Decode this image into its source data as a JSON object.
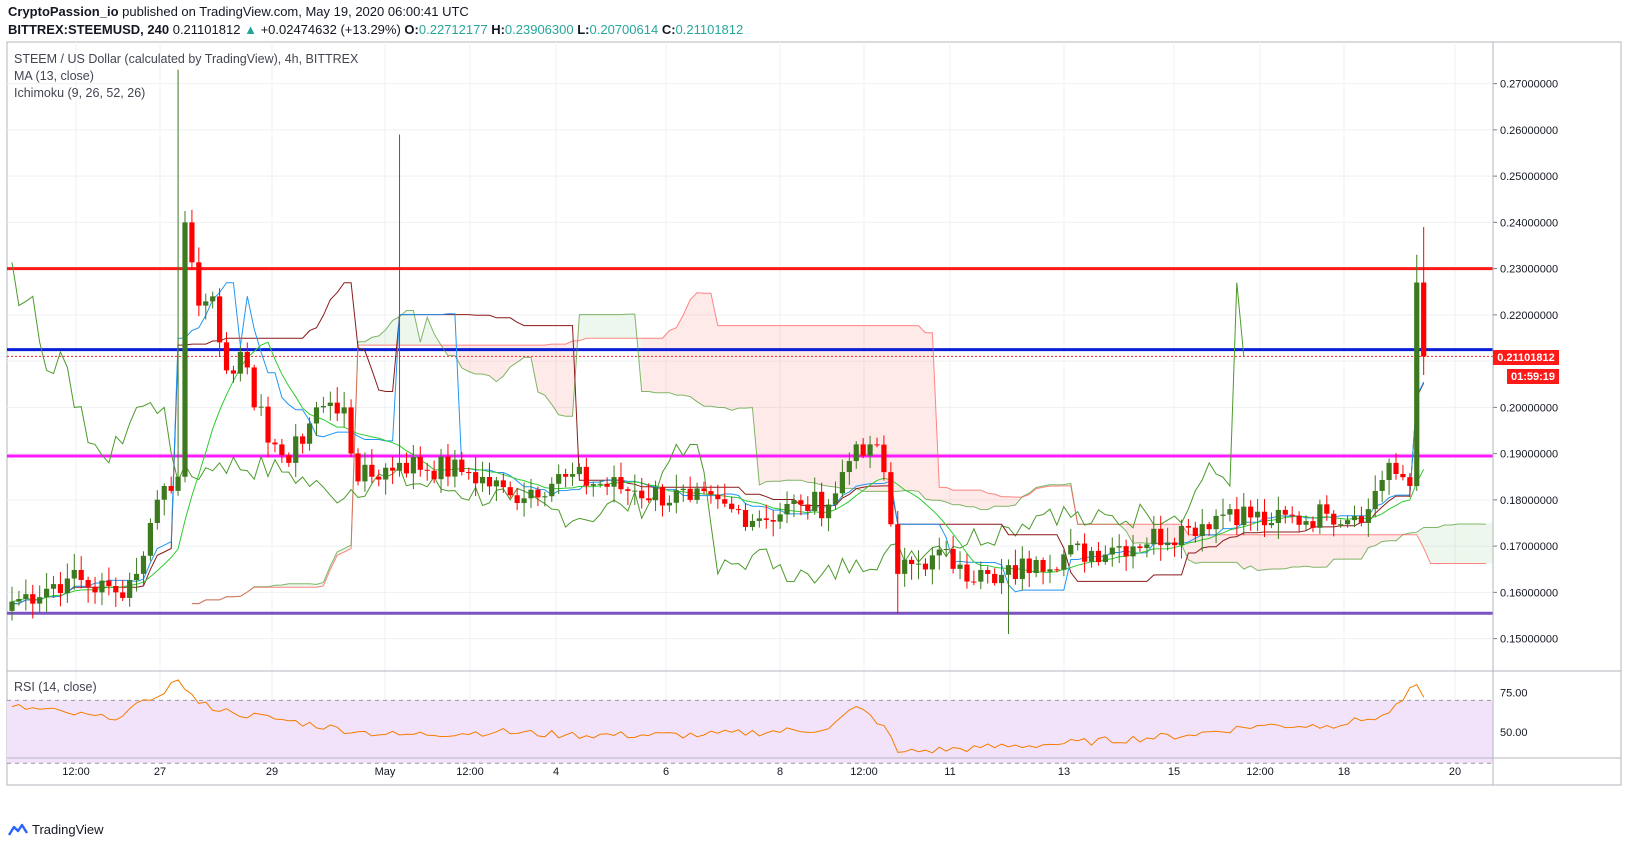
{
  "header": {
    "author": "CryptoPassion_io",
    "published_text": "published on TradingView.com, May 19, 2020 06:00:41 UTC",
    "symbol": "BITTREX:STEEMUSD, 240",
    "last": "0.21101812",
    "change": "+0.02474632 (+13.29%)",
    "o_label": "O:",
    "o": "0.22712177",
    "h_label": "H:",
    "h": "0.23906300",
    "l_label": "L:",
    "l": "0.20700614",
    "c_label": "C:",
    "c": "0.21101812"
  },
  "legends": {
    "main": "STEEM / US Dollar (calculated by TradingView), 4h, BITTREX",
    "ma": "MA (13, close)",
    "ichimoku": "Ichimoku (9, 26, 52, 26)",
    "rsi": "RSI (14, close)"
  },
  "price_label": "0.21101812",
  "countdown_label": "01:59:19",
  "footer": {
    "brand": "TradingView"
  },
  "colors": {
    "up": "#3d7a1f",
    "down": "#ff0000",
    "resistance": "#ff1a1a",
    "mid": "#0b1fd6",
    "support_mag": "#ff19ff",
    "support_purple": "#7a52c2",
    "ma": "#2ecc2e",
    "tenkan": "#2196f3",
    "kijun": "#8b1a1a",
    "chikou": "#4c9a2a",
    "rsi": "#f57c00",
    "rsi_band": "#f3e3fa"
  },
  "chart_data": {
    "type": "candlestick",
    "title": "STEEM / US Dollar (calculated by TradingView), 4h, BITTREX",
    "ylim": [
      0.143,
      0.279
    ],
    "y_ticks": [
      "0.27000000",
      "0.26000000",
      "0.25000000",
      "0.24000000",
      "0.23000000",
      "0.22000000",
      "0.21000000",
      "0.20000000",
      "0.19000000",
      "0.18000000",
      "0.17000000",
      "0.16000000",
      "0.15000000"
    ],
    "x_ticks": [
      "12:00",
      "27",
      "29",
      "May",
      "12:00",
      "4",
      "6",
      "8",
      "12:00",
      "11",
      "13",
      "15",
      "12:00",
      "18",
      "20"
    ],
    "horizontal_lines": [
      {
        "name": "resistance",
        "value": 0.23
      },
      {
        "name": "mid",
        "value": 0.2125
      },
      {
        "name": "support-mag",
        "value": 0.1895
      },
      {
        "name": "support-purple",
        "value": 0.1555
      }
    ],
    "anchors": [
      {
        "t": 0,
        "p": 0.158
      },
      {
        "t": 8,
        "p": 0.163
      },
      {
        "t": 15,
        "p": 0.16
      },
      {
        "t": 18,
        "p": 0.164
      },
      {
        "t": 20,
        "p": 0.175
      },
      {
        "t": 22,
        "p": 0.183
      },
      {
        "t": 24,
        "p": 0.185
      },
      {
        "t": 25,
        "p": 0.24
      },
      {
        "t": 27,
        "p": 0.222
      },
      {
        "t": 29,
        "p": 0.224
      },
      {
        "t": 31,
        "p": 0.208
      },
      {
        "t": 33,
        "p": 0.212
      },
      {
        "t": 35,
        "p": 0.2
      },
      {
        "t": 38,
        "p": 0.192
      },
      {
        "t": 40,
        "p": 0.188
      },
      {
        "t": 44,
        "p": 0.2
      },
      {
        "t": 48,
        "p": 0.2
      },
      {
        "t": 50,
        "p": 0.184
      },
      {
        "t": 56,
        "p": 0.188
      },
      {
        "t": 66,
        "p": 0.186
      },
      {
        "t": 72,
        "p": 0.181
      },
      {
        "t": 80,
        "p": 0.185
      },
      {
        "t": 90,
        "p": 0.182
      },
      {
        "t": 98,
        "p": 0.18
      },
      {
        "t": 104,
        "p": 0.178
      },
      {
        "t": 108,
        "p": 0.176
      },
      {
        "t": 114,
        "p": 0.179
      },
      {
        "t": 118,
        "p": 0.179
      },
      {
        "t": 122,
        "p": 0.192
      },
      {
        "t": 124,
        "p": 0.192
      },
      {
        "t": 126,
        "p": 0.186
      },
      {
        "t": 128,
        "p": 0.164
      },
      {
        "t": 133,
        "p": 0.168
      },
      {
        "t": 137,
        "p": 0.166
      },
      {
        "t": 142,
        "p": 0.162
      },
      {
        "t": 148,
        "p": 0.167
      },
      {
        "t": 160,
        "p": 0.17
      },
      {
        "t": 170,
        "p": 0.174
      },
      {
        "t": 176,
        "p": 0.178
      },
      {
        "t": 182,
        "p": 0.175
      },
      {
        "t": 190,
        "p": 0.177
      },
      {
        "t": 196,
        "p": 0.178
      },
      {
        "t": 199,
        "p": 0.188
      },
      {
        "t": 202,
        "p": 0.183
      },
      {
        "t": 203,
        "p": 0.227
      },
      {
        "t": 204,
        "p": 0.211
      }
    ],
    "spikes": [
      {
        "t": 24,
        "high": 0.273
      },
      {
        "t": 56,
        "high": 0.259
      },
      {
        "t": 128,
        "low": 0.1555
      },
      {
        "t": 144,
        "low": 0.151
      },
      {
        "t": 203,
        "high": 0.233
      },
      {
        "t": 204,
        "high": 0.239,
        "low": 0.207
      }
    ],
    "rsi": {
      "name": "RSI (14, close)",
      "ylim": [
        34,
        88
      ],
      "ticks": [
        75,
        50
      ],
      "band": [
        70,
        30
      ],
      "anchors": [
        {
          "t": 0,
          "v": 66
        },
        {
          "t": 8,
          "v": 62
        },
        {
          "t": 14,
          "v": 58
        },
        {
          "t": 20,
          "v": 70
        },
        {
          "t": 24,
          "v": 83
        },
        {
          "t": 27,
          "v": 68
        },
        {
          "t": 32,
          "v": 62
        },
        {
          "t": 40,
          "v": 57
        },
        {
          "t": 50,
          "v": 50
        },
        {
          "t": 56,
          "v": 48
        },
        {
          "t": 70,
          "v": 50
        },
        {
          "t": 80,
          "v": 48
        },
        {
          "t": 100,
          "v": 48
        },
        {
          "t": 118,
          "v": 52
        },
        {
          "t": 122,
          "v": 66
        },
        {
          "t": 126,
          "v": 54
        },
        {
          "t": 128,
          "v": 37
        },
        {
          "t": 140,
          "v": 40
        },
        {
          "t": 150,
          "v": 42
        },
        {
          "t": 170,
          "v": 48
        },
        {
          "t": 180,
          "v": 54
        },
        {
          "t": 190,
          "v": 54
        },
        {
          "t": 196,
          "v": 58
        },
        {
          "t": 199,
          "v": 62
        },
        {
          "t": 203,
          "v": 80
        },
        {
          "t": 204,
          "v": 72
        }
      ]
    }
  }
}
